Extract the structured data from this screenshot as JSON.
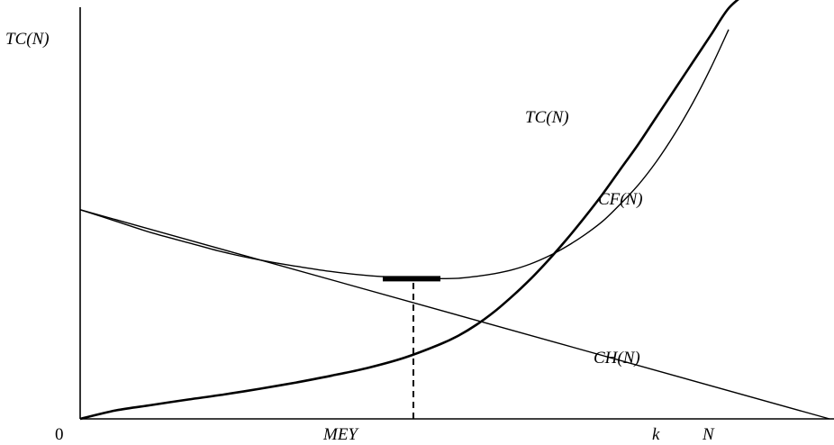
{
  "chart_data": {
    "type": "line",
    "title": "",
    "ylabel": "TC(N)",
    "xlabel": "N",
    "x_ticks": [
      {
        "label": "0",
        "x": 0
      },
      {
        "label": "MEY",
        "x": 9.25
      },
      {
        "label": "k",
        "x": 16.6
      }
    ],
    "xlim": [
      0,
      20.8
    ],
    "ylim": [
      0,
      11
    ],
    "grid": false,
    "legend": "none",
    "series": [
      {
        "name": "TC(N)",
        "stroke": "thin",
        "x": [
          0,
          1,
          2,
          3,
          4,
          5,
          6,
          7,
          8,
          9,
          9.5,
          10,
          10.5,
          11,
          11.5,
          12,
          12.5,
          13,
          13.5,
          14,
          14.5,
          15,
          15.5,
          16,
          16.5,
          17,
          17.5,
          18
        ],
        "y": [
          5.4,
          5.1,
          4.8,
          4.55,
          4.3,
          4.1,
          3.94,
          3.8,
          3.7,
          3.64,
          3.62,
          3.62,
          3.63,
          3.68,
          3.75,
          3.85,
          4.0,
          4.2,
          4.45,
          4.75,
          5.1,
          5.55,
          6.05,
          6.65,
          7.35,
          8.15,
          9.05,
          10.05
        ]
      },
      {
        "name": "CF(N)",
        "stroke": "thick",
        "x": [
          0,
          1,
          2,
          3,
          4,
          5,
          6,
          7,
          8,
          9,
          10,
          10.5,
          11,
          11.5,
          12,
          12.5,
          13,
          13.5,
          14,
          14.5,
          15,
          15.5,
          16,
          16.5,
          17,
          17.5,
          18,
          18.5
        ],
        "y": [
          0,
          0.22,
          0.36,
          0.5,
          0.63,
          0.78,
          0.94,
          1.12,
          1.32,
          1.58,
          1.93,
          2.15,
          2.43,
          2.77,
          3.17,
          3.61,
          4.1,
          4.63,
          5.2,
          5.8,
          6.45,
          7.1,
          7.8,
          8.5,
          9.2,
          9.9,
          10.6,
          11
        ]
      },
      {
        "name": "CH(N)",
        "stroke": "thin",
        "x": [
          0,
          20.8
        ],
        "y": [
          5.4,
          0
        ]
      }
    ],
    "annotations": [
      {
        "type": "optimum-bar",
        "x_from": 8.4,
        "x_to": 10.0,
        "y": 3.62
      },
      {
        "type": "dropline",
        "x": 9.25,
        "y_from": 0,
        "y_to": 3.62,
        "style": "dashed"
      }
    ]
  }
}
